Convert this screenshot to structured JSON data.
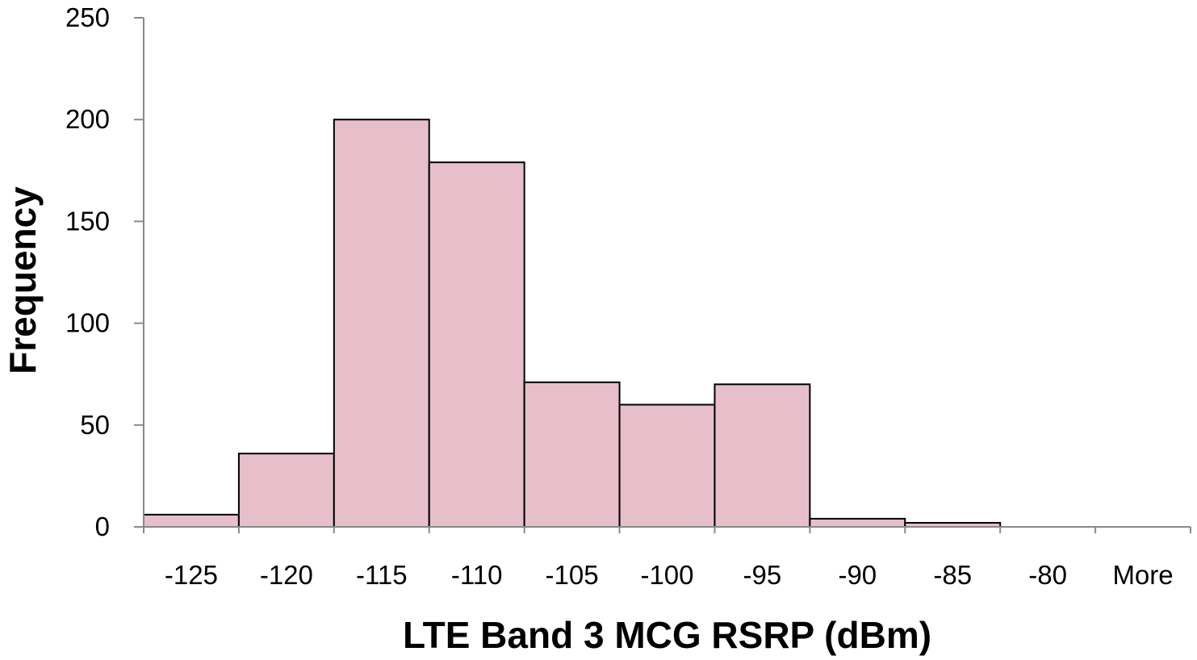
{
  "chart_data": {
    "type": "bar",
    "title": "",
    "xlabel": "LTE Band 3 MCG RSRP (dBm)",
    "ylabel": "Frequency",
    "categories": [
      "-125",
      "-120",
      "-115",
      "-110",
      "-105",
      "-100",
      "-95",
      "-90",
      "-85",
      "-80",
      "More"
    ],
    "values": [
      6,
      36,
      200,
      179,
      71,
      60,
      70,
      4,
      2,
      0,
      0
    ],
    "ylim": [
      0,
      250
    ],
    "yticks": [
      0,
      50,
      100,
      150,
      200,
      250
    ],
    "grid": false,
    "legend": "none",
    "bar_color": "#e6bfcb",
    "bar_edge_color": "#000000",
    "axis_color": "#898989"
  }
}
